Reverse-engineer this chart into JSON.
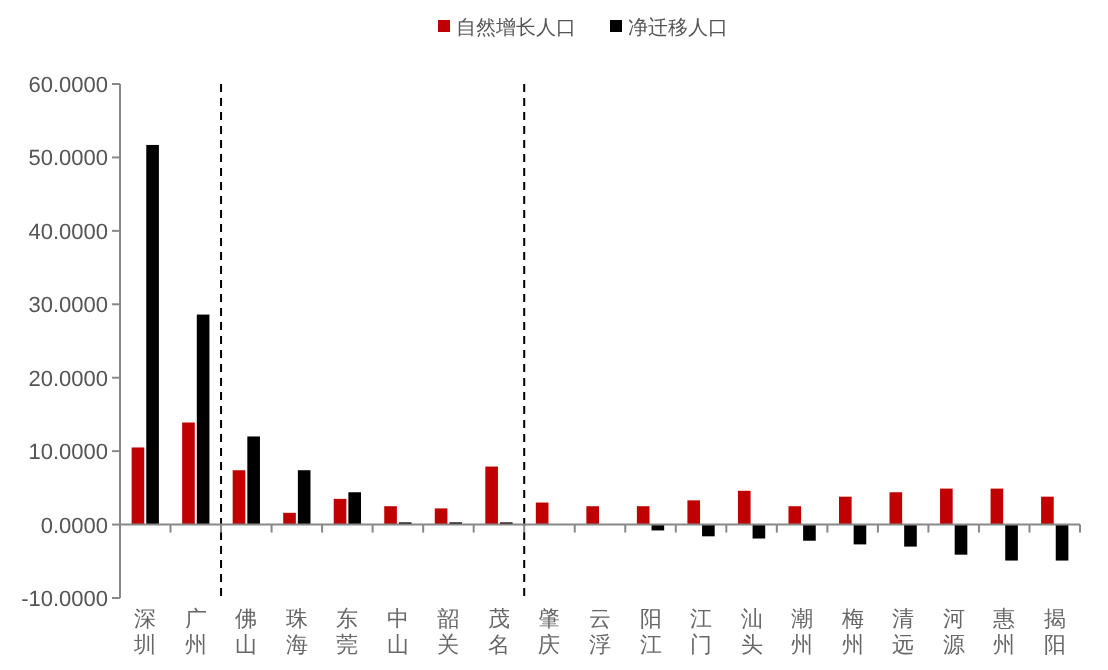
{
  "chart_data": {
    "type": "bar",
    "categories": [
      "深圳",
      "广州",
      "佛山",
      "珠海",
      "东莞",
      "中山",
      "韶关",
      "茂名",
      "肇庆",
      "云浮",
      "阳江",
      "江门",
      "汕头",
      "潮州",
      "梅州",
      "清远",
      "河源",
      "惠州",
      "揭阳"
    ],
    "series": [
      {
        "name": "自然增长人口",
        "color": "#c00000",
        "values": [
          10.5,
          13.9,
          7.4,
          1.6,
          3.5,
          2.5,
          2.2,
          7.9,
          3.0,
          2.5,
          2.5,
          3.3,
          4.6,
          2.5,
          3.8,
          4.4,
          4.9,
          4.9,
          3.8
        ]
      },
      {
        "name": "净迁移人口",
        "color": "#000000",
        "values": [
          51.7,
          28.6,
          12.0,
          7.4,
          4.4,
          0.3,
          0.3,
          0.3,
          0,
          0,
          -0.8,
          -1.6,
          -1.9,
          -2.2,
          -2.7,
          -3.0,
          -4.1,
          -4.9,
          -4.9
        ]
      }
    ],
    "ylim": [
      -10,
      60
    ],
    "yticks": [
      {
        "value": -10,
        "label": "-10.0000"
      },
      {
        "value": 0,
        "label": "0.0000"
      },
      {
        "value": 10,
        "label": "10.0000"
      },
      {
        "value": 20,
        "label": "20.0000"
      },
      {
        "value": 30,
        "label": "30.0000"
      },
      {
        "value": 40,
        "label": "40.0000"
      },
      {
        "value": 50,
        "label": "50.0000"
      },
      {
        "value": 60,
        "label": "60.0000"
      }
    ],
    "grid": false,
    "legend": "top"
  }
}
